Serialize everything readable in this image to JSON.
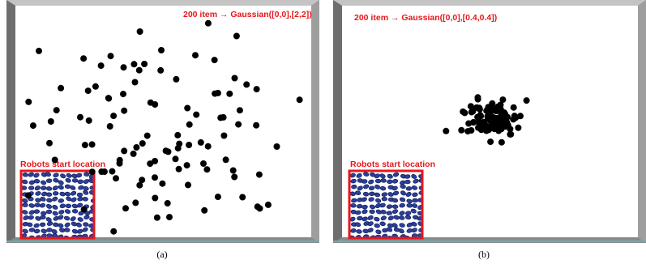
{
  "panels": [
    {
      "annotation": "200 item → Gaussian([0,0],[2,2])",
      "start_label": "Robots start location",
      "caption": "(a)"
    },
    {
      "annotation": "200 item → Gaussian([0,0],[0.4,0.4])",
      "start_label": "Robots start location",
      "caption": "(b)"
    }
  ]
}
